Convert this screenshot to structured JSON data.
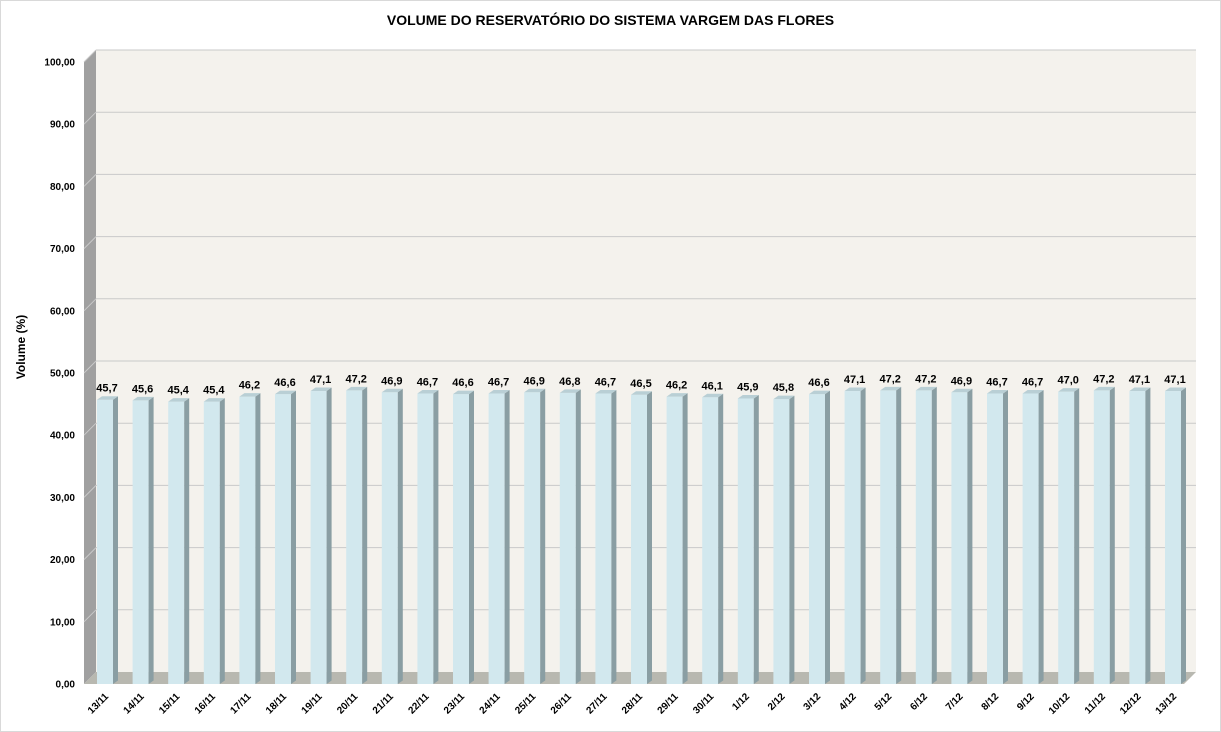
{
  "chart_data": {
    "type": "bar",
    "title": "VOLUME DO RESERVATÓRIO DO SISTEMA VARGEM DAS FLORES",
    "xlabel": "",
    "ylabel": "Volume (%)",
    "ylim": [
      0,
      100
    ],
    "ytick_values": [
      0,
      10,
      20,
      30,
      40,
      50,
      60,
      70,
      80,
      90,
      100
    ],
    "ytick_labels": [
      "0,00",
      "10,00",
      "20,00",
      "30,00",
      "40,00",
      "50,00",
      "60,00",
      "70,00",
      "80,00",
      "90,00",
      "100,00"
    ],
    "grid": true,
    "legend": "none",
    "categories": [
      "13/11",
      "14/11",
      "15/11",
      "16/11",
      "17/11",
      "18/11",
      "19/11",
      "20/11",
      "21/11",
      "22/11",
      "23/11",
      "24/11",
      "25/11",
      "26/11",
      "27/11",
      "28/11",
      "29/11",
      "30/11",
      "1/12",
      "2/12",
      "3/12",
      "4/12",
      "5/12",
      "6/12",
      "7/12",
      "8/12",
      "9/12",
      "10/12",
      "11/12",
      "12/12",
      "13/12"
    ],
    "values": [
      45.7,
      45.6,
      45.4,
      45.4,
      46.2,
      46.6,
      47.1,
      47.2,
      46.9,
      46.7,
      46.6,
      46.7,
      46.9,
      46.8,
      46.7,
      46.5,
      46.2,
      46.1,
      45.9,
      45.8,
      46.6,
      47.1,
      47.2,
      47.2,
      46.9,
      46.7,
      46.7,
      47.0,
      47.2,
      47.1,
      47.1
    ],
    "value_labels": [
      "45,7",
      "45,6",
      "45,4",
      "45,4",
      "46,2",
      "46,6",
      "47,1",
      "47,2",
      "46,9",
      "46,7",
      "46,6",
      "46,7",
      "46,9",
      "46,8",
      "46,7",
      "46,5",
      "46,2",
      "46,1",
      "45,9",
      "45,8",
      "46,6",
      "47,1",
      "47,2",
      "47,2",
      "46,9",
      "46,7",
      "46,7",
      "47,0",
      "47,2",
      "47,1",
      "47,1"
    ],
    "colors": {
      "bar_front": "#d2e8ee",
      "bar_side": "#8a9ea3",
      "bar_top": "#b9cfd5",
      "plot_background": "#f4f2ed",
      "gridline": "#c9c9c9",
      "left_wall": "#a0a0a0",
      "floor": "#b8b8b0"
    }
  }
}
